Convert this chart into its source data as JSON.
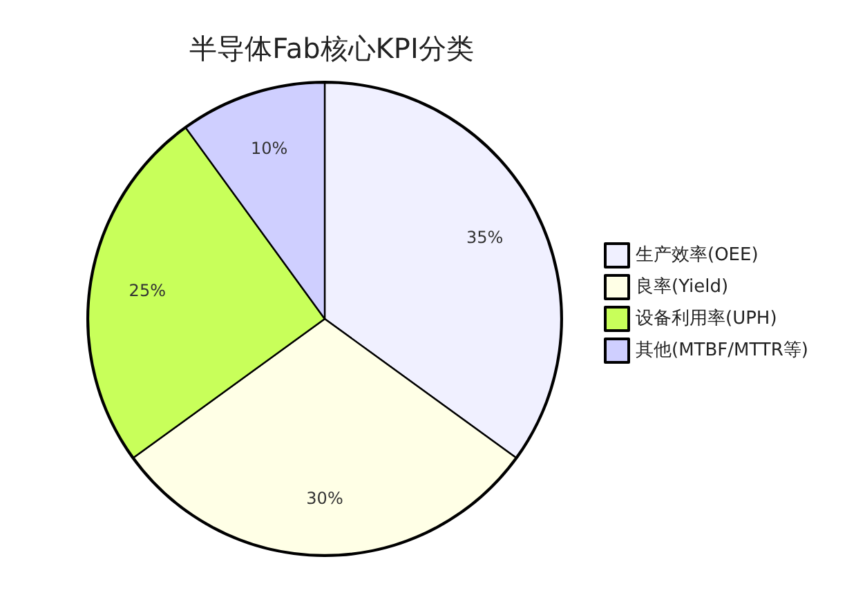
{
  "chart_data": {
    "type": "pie",
    "title": "半导体Fab核心KPI分类",
    "categories": [
      "生产效率(OEE)",
      "良率(Yield)",
      "设备利用率(UPH)",
      "其他(MTBF/MTTR等)"
    ],
    "values": [
      35,
      30,
      25,
      10
    ],
    "colors": [
      "#f0f0ff",
      "#ffffe6",
      "#c8ff5a",
      "#cfcfff"
    ],
    "value_labels": [
      "35%",
      "30%",
      "25%",
      "10%"
    ],
    "legend": "right"
  }
}
